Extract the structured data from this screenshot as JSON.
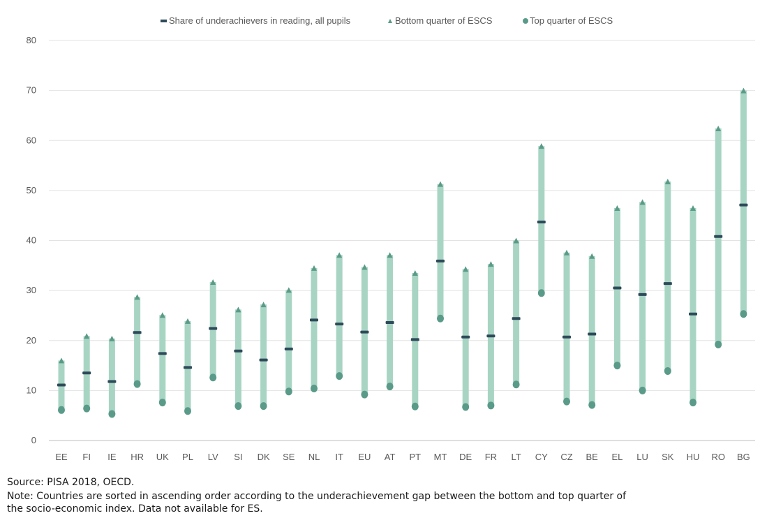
{
  "chart_data": {
    "type": "range",
    "title": "",
    "xlabel": "",
    "ylabel": "",
    "ylim": [
      0,
      80
    ],
    "yticks": [
      0,
      10,
      20,
      30,
      40,
      50,
      60,
      70,
      80
    ],
    "grid": true,
    "legend_position": "top",
    "legend": [
      "Share of underachievers in reading, all pupils",
      "Bottom quarter of ESCS",
      "Top quarter of ESCS"
    ],
    "categories": [
      "EE",
      "FI",
      "IE",
      "HR",
      "UK",
      "PL",
      "LV",
      "SI",
      "DK",
      "SE",
      "NL",
      "IT",
      "EU",
      "AT",
      "PT",
      "MT",
      "DE",
      "FR",
      "LT",
      "CY",
      "CZ",
      "BE",
      "EL",
      "LU",
      "SK",
      "HU",
      "RO",
      "BG"
    ],
    "series": [
      {
        "name": "Share of underachievers in reading, all pupils",
        "marker": "dash",
        "color": "#2e4a5a",
        "values": [
          11.1,
          13.5,
          11.8,
          21.6,
          17.4,
          14.6,
          22.4,
          17.9,
          16.1,
          18.3,
          24.1,
          23.3,
          21.7,
          23.6,
          20.2,
          35.9,
          20.7,
          20.9,
          24.4,
          43.7,
          20.7,
          21.3,
          30.5,
          29.2,
          31.4,
          25.3,
          40.8,
          47.1
        ]
      },
      {
        "name": "Bottom quarter of ESCS",
        "marker": "triangle",
        "color": "#5a9a88",
        "values": [
          16.0,
          20.9,
          20.4,
          28.7,
          25.1,
          23.9,
          31.7,
          26.2,
          27.2,
          30.1,
          34.5,
          37.1,
          34.7,
          37.1,
          33.5,
          51.3,
          34.3,
          35.3,
          40.0,
          58.9,
          37.6,
          36.9,
          46.5,
          47.7,
          51.8,
          46.5,
          62.4,
          70.0
        ]
      },
      {
        "name": "Top quarter of ESCS",
        "marker": "circle",
        "color": "#5a9a88",
        "values": [
          6.1,
          6.4,
          5.3,
          11.3,
          7.6,
          5.9,
          12.6,
          6.9,
          6.9,
          9.8,
          10.4,
          12.9,
          9.2,
          10.8,
          6.8,
          24.4,
          6.7,
          7.0,
          11.2,
          29.5,
          7.8,
          7.1,
          15.0,
          10.0,
          13.9,
          7.6,
          19.2,
          25.3
        ]
      }
    ],
    "range_bar_color": "#a8d5c3"
  },
  "footer": {
    "source": "Source: PISA 2018, OECD.",
    "note_line_1": "Note: Countries are sorted in ascending order according to the underachievement gap between the bottom and top quarter of",
    "note_line_2": "the socio-economic index. Data not available for ES."
  }
}
